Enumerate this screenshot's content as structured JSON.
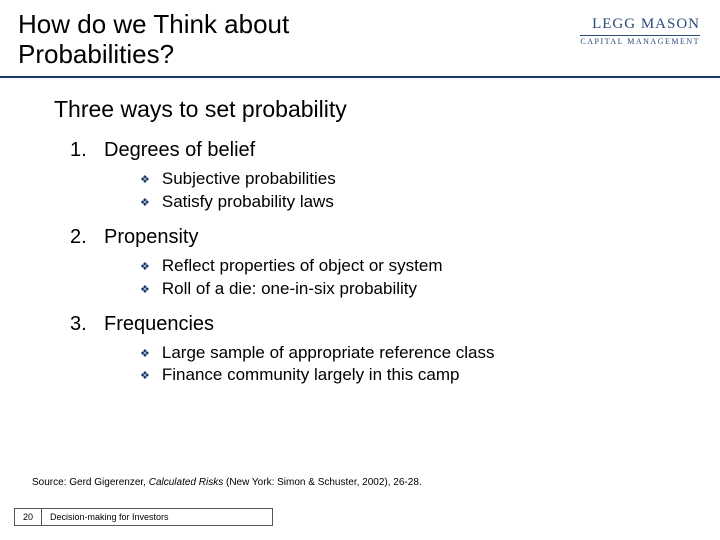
{
  "header": {
    "title_line1": "How do we Think about",
    "title_line2": "Probabilities?",
    "logo_main": "LEGG MASON",
    "logo_sub": "CAPITAL MANAGEMENT"
  },
  "subtitle": "Three ways to set probability",
  "items": [
    {
      "num": "1.",
      "label": "Degrees of belief",
      "subs": [
        "Subjective probabilities",
        "Satisfy probability laws"
      ]
    },
    {
      "num": "2.",
      "label": "Propensity",
      "subs": [
        "Reflect properties of object or system",
        "Roll of a die: one-in-six probability"
      ]
    },
    {
      "num": "3.",
      "label": "Frequencies",
      "subs": [
        "Large sample of appropriate reference class",
        "Finance community largely in this camp"
      ]
    }
  ],
  "source": {
    "prefix": "Source: Gerd Gigerenzer, ",
    "italic": "Calculated Risks",
    "suffix": " (New York: Simon & Schuster, 2002), 26-28."
  },
  "footer": {
    "page": "20",
    "text": "Decision-making for Investors"
  },
  "colors": {
    "rule": "#1a3a6e",
    "logo": "#2a4a7a",
    "diamond": "#1a3a6e",
    "background": "#ffffff"
  }
}
